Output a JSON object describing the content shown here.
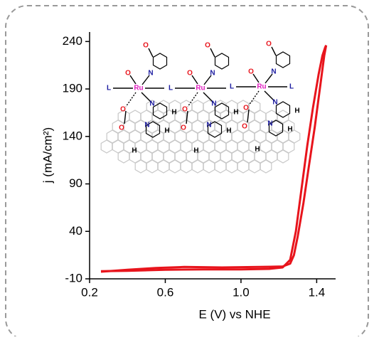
{
  "chart_data": {
    "type": "line",
    "xlabel": "E (V) vs NHE",
    "ylabel": "j (mA/cm²)",
    "xlim": [
      0.2,
      1.5
    ],
    "xticks": [
      0.2,
      0.6,
      1.0,
      1.4
    ],
    "ylim": [
      -10,
      250
    ],
    "yticks": [
      -10,
      40,
      90,
      140,
      190,
      240
    ],
    "series": [
      {
        "color": "#e8141c",
        "x": [
          0.26,
          0.4,
          0.6,
          0.8,
          1.0,
          1.15,
          1.22,
          1.26,
          1.29,
          1.32,
          1.35,
          1.38,
          1.41,
          1.43,
          1.445,
          1.45
        ],
        "values": [
          -2,
          -1.5,
          -0.5,
          0,
          0,
          0.5,
          2,
          10,
          40,
          85,
          130,
          170,
          205,
          225,
          234,
          236
        ]
      },
      {
        "color": "#e8141c",
        "x": [
          1.45,
          1.44,
          1.42,
          1.39,
          1.36,
          1.33,
          1.3,
          1.28,
          1.26,
          1.22,
          1.1,
          0.9,
          0.7,
          0.55,
          0.4,
          0.26
        ],
        "values": [
          236,
          225,
          195,
          150,
          110,
          70,
          35,
          15,
          6,
          3,
          2.5,
          2,
          2.5,
          1.5,
          -0.5,
          -2.5
        ]
      }
    ],
    "inset_labels": [
      "Ru",
      "N",
      "O",
      "L",
      "H"
    ]
  }
}
